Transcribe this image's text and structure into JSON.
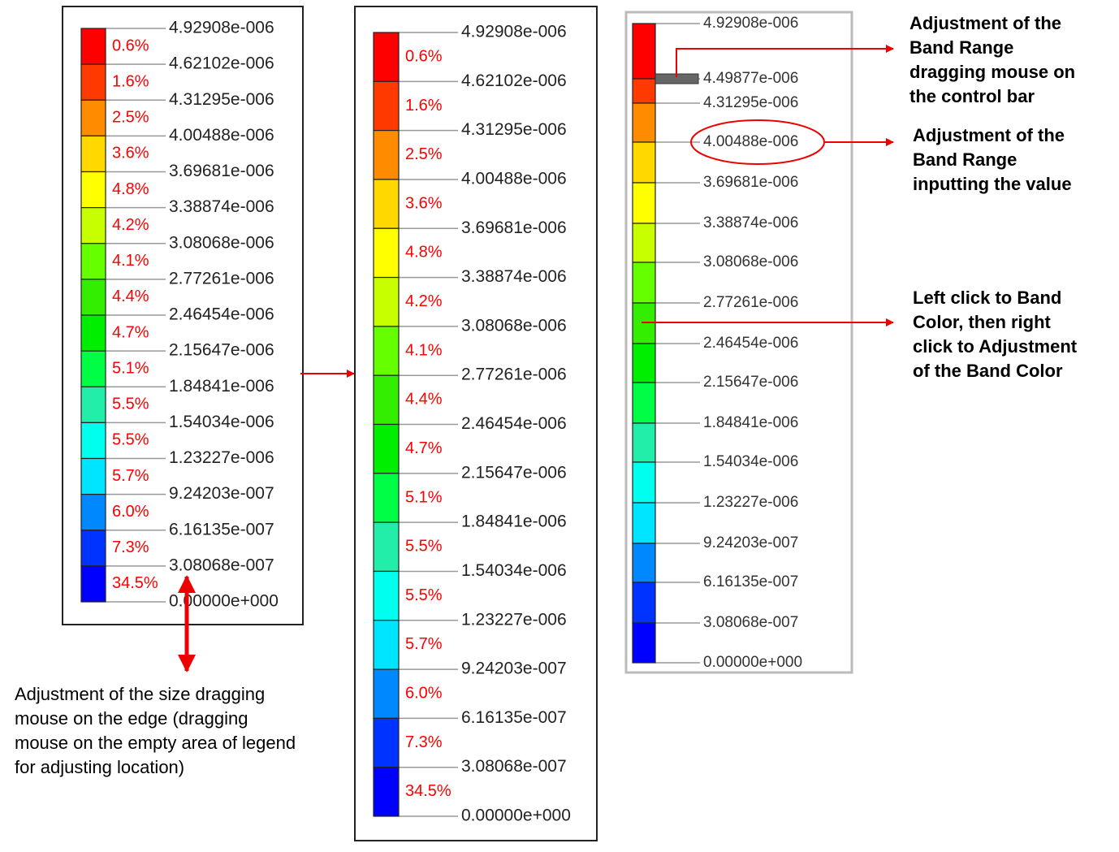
{
  "band_colors": [
    "#ff0000",
    "#ff3a00",
    "#ff8c00",
    "#ffd800",
    "#ffff00",
    "#c8ff00",
    "#66ff00",
    "#33ee00",
    "#00ee00",
    "#00ff44",
    "#22eeaa",
    "#00ffee",
    "#00e5ff",
    "#0088ff",
    "#0033ff",
    "#0000ff"
  ],
  "legends": [
    {
      "labels": [
        "4.92908e-006",
        "4.62102e-006",
        "4.31295e-006",
        "4.00488e-006",
        "3.69681e-006",
        "3.38874e-006",
        "3.08068e-006",
        "2.77261e-006",
        "2.46454e-006",
        "2.15647e-006",
        "1.84841e-006",
        "1.54034e-006",
        "1.23227e-006",
        "9.24203e-007",
        "6.16135e-007",
        "3.08068e-007",
        "0.00000e+000"
      ],
      "percents": [
        "0.6%",
        "1.6%",
        "2.5%",
        "3.6%",
        "4.8%",
        "4.2%",
        "4.1%",
        "4.4%",
        "4.7%",
        "5.1%",
        "5.5%",
        "5.5%",
        "5.7%",
        "6.0%",
        "7.3%",
        "34.5%"
      ]
    },
    {
      "labels": [
        "4.92908e-006",
        "4.62102e-006",
        "4.31295e-006",
        "4.00488e-006",
        "3.69681e-006",
        "3.38874e-006",
        "3.08068e-006",
        "2.77261e-006",
        "2.46454e-006",
        "2.15647e-006",
        "1.84841e-006",
        "1.54034e-006",
        "1.23227e-006",
        "9.24203e-007",
        "6.16135e-007",
        "3.08068e-007",
        "0.00000e+000"
      ],
      "percents": [
        "0.6%",
        "1.6%",
        "2.5%",
        "3.6%",
        "4.8%",
        "4.2%",
        "4.1%",
        "4.4%",
        "4.7%",
        "5.1%",
        "5.5%",
        "5.5%",
        "5.7%",
        "6.0%",
        "7.3%",
        "34.5%"
      ]
    },
    {
      "labels": [
        "4.92908e-006",
        "4.49877e-006",
        "4.31295e-006",
        "4.00488e-006",
        "3.69681e-006",
        "3.38874e-006",
        "3.08068e-006",
        "2.77261e-006",
        "2.46454e-006",
        "2.15647e-006",
        "1.84841e-006",
        "1.54034e-006",
        "1.23227e-006",
        "9.24203e-007",
        "6.16135e-007",
        "3.08068e-007",
        "0.00000e+000"
      ]
    }
  ],
  "annotations": {
    "size_adjust": [
      "Adjustment of the size dragging",
      "mouse on  the edge (dragging",
      "mouse on the empty area of legend",
      "for adjusting location)"
    ],
    "band_range_drag": [
      "Adjustment of the",
      "Band Range",
      "dragging mouse on",
      "the control bar"
    ],
    "band_range_input": [
      "Adjustment of the",
      "Band Range",
      "inputting the value"
    ],
    "band_color": [
      "Left click to Band",
      "Color, then right",
      "click to Adjustment",
      "of the Band Color"
    ]
  }
}
